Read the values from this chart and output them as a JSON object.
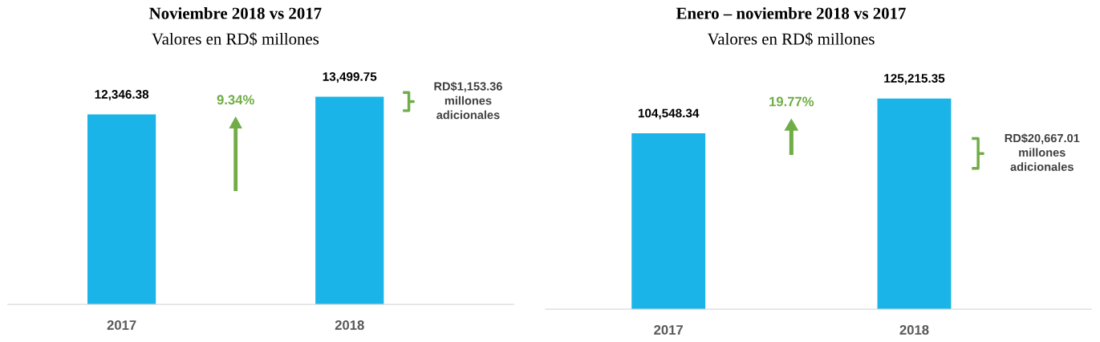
{
  "chart_data": [
    {
      "type": "bar",
      "title": "Noviembre 2018 vs 2017",
      "subtitle": "Valores en RD$ millones",
      "categories": [
        "2017",
        "2018"
      ],
      "values": [
        12346.38,
        13499.75
      ],
      "color": "#1ab4e8",
      "data_labels": true,
      "value_labels": [
        "12,346.38",
        "13,499.75"
      ],
      "tick_labels": "x",
      "grid": false,
      "annotations": [
        "9.34%",
        "RD$1,153.36\nmillones\nadicionales"
      ]
    },
    {
      "type": "bar",
      "title": "Enero – noviembre 2018 vs 2017",
      "subtitle": "Valores en RD$ millones",
      "categories": [
        "2017",
        "2018"
      ],
      "values": [
        104548.34,
        125215.35
      ],
      "color": "#1ab4e8",
      "data_labels": true,
      "value_labels": [
        "104,548.34",
        "125,215.35"
      ],
      "tick_labels": "x",
      "grid": false,
      "annotations": [
        "19.77%",
        "RD$20,667.01\nmillones\nadicionales"
      ]
    }
  ]
}
